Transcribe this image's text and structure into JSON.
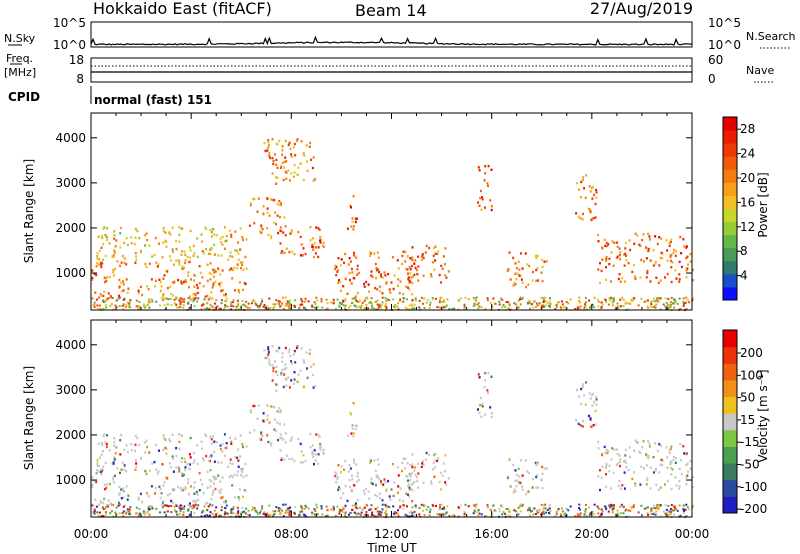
{
  "header": {
    "station": "Hokkaido East (fitACF)",
    "beam": "Beam 14",
    "date": "27/Aug/2019"
  },
  "top_panels": {
    "nsky_label": "N.Sky",
    "nsky_ticks": [
      "10^5",
      "10^0"
    ],
    "nsearch_label": "N.Search",
    "freq_label_1": "Freq.",
    "freq_label_2": "[MHz]",
    "freq_ticks": [
      "18",
      "8"
    ],
    "nave_ticks": [
      "60",
      "0"
    ],
    "nave_label": "Nave",
    "cpid_label": "CPID",
    "cpid_text": "normal (fast) 151"
  },
  "chart_data": [
    {
      "type": "heatmap",
      "panel": "power",
      "xlabel": "Time UT",
      "ylabel": "Slant Range [km]",
      "xlim": [
        "00:00",
        "24:00"
      ],
      "ylim": [
        180,
        4550
      ],
      "x_ticks": [
        "00:00",
        "04:00",
        "08:00",
        "12:00",
        "16:00",
        "20:00",
        "00:00"
      ],
      "y_ticks": [
        1000,
        2000,
        3000,
        4000
      ],
      "colorbar": {
        "label": "Power [dB]",
        "range": [
          0,
          30
        ],
        "ticks": [
          4,
          8,
          12,
          16,
          20,
          24,
          28
        ],
        "colors": [
          "#0a10ff",
          "#1650c8",
          "#2f7a6a",
          "#4a9a58",
          "#64b848",
          "#96cc3a",
          "#c8d62c",
          "#f0c022",
          "#f5a018",
          "#f57c10",
          "#f05a08",
          "#ec3a04",
          "#e81e00",
          "#e40000"
        ]
      },
      "echo_regions": [
        {
          "t0": 0.0,
          "t1": 6.2,
          "r0": 500,
          "r1": 1300,
          "level": 24
        },
        {
          "t0": 0.2,
          "t1": 6.2,
          "r0": 1300,
          "r1": 2050,
          "level": 20
        },
        {
          "t0": 6.3,
          "t1": 7.7,
          "r0": 1800,
          "r1": 2700,
          "level": 25
        },
        {
          "t0": 6.8,
          "t1": 9.0,
          "r0": 3000,
          "r1": 4000,
          "level": 24
        },
        {
          "t0": 7.5,
          "t1": 9.3,
          "r0": 1350,
          "r1": 2100,
          "level": 27
        },
        {
          "t0": 9.6,
          "t1": 12.8,
          "r0": 500,
          "r1": 1500,
          "level": 26
        },
        {
          "t0": 10.2,
          "t1": 10.6,
          "r0": 1900,
          "r1": 2800,
          "level": 27
        },
        {
          "t0": 12.7,
          "t1": 14.3,
          "r0": 800,
          "r1": 1650,
          "level": 26
        },
        {
          "t0": 15.4,
          "t1": 16.0,
          "r0": 2400,
          "r1": 3400,
          "level": 26
        },
        {
          "t0": 16.6,
          "t1": 18.2,
          "r0": 700,
          "r1": 1500,
          "level": 24
        },
        {
          "t0": 20.2,
          "t1": 24.0,
          "r0": 800,
          "r1": 1900,
          "level": 26
        },
        {
          "t0": 19.3,
          "t1": 20.2,
          "r0": 2200,
          "r1": 3300,
          "level": 25
        }
      ]
    },
    {
      "type": "heatmap",
      "panel": "velocity",
      "xlabel": "Time UT",
      "ylabel": "Slant Range [km]",
      "xlim": [
        "00:00",
        "24:00"
      ],
      "ylim": [
        180,
        4550
      ],
      "x_ticks": [
        "00:00",
        "04:00",
        "08:00",
        "12:00",
        "16:00",
        "20:00",
        "00:00"
      ],
      "y_ticks": [
        1000,
        2000,
        3000,
        4000
      ],
      "colorbar": {
        "label": "Velocity [m s⁻¹]",
        "ticks": [
          "200",
          "100",
          "50",
          "15",
          "-15",
          "-50",
          "-100",
          "-200"
        ],
        "colors": [
          "#2020c0",
          "#2a4aa0",
          "#3a7a60",
          "#4aa050",
          "#7ac840",
          "#c8c8c8",
          "#f0c020",
          "#f09018",
          "#f06010",
          "#ec3008",
          "#e80000"
        ]
      },
      "note": "Ground scatter shown in grey"
    }
  ]
}
